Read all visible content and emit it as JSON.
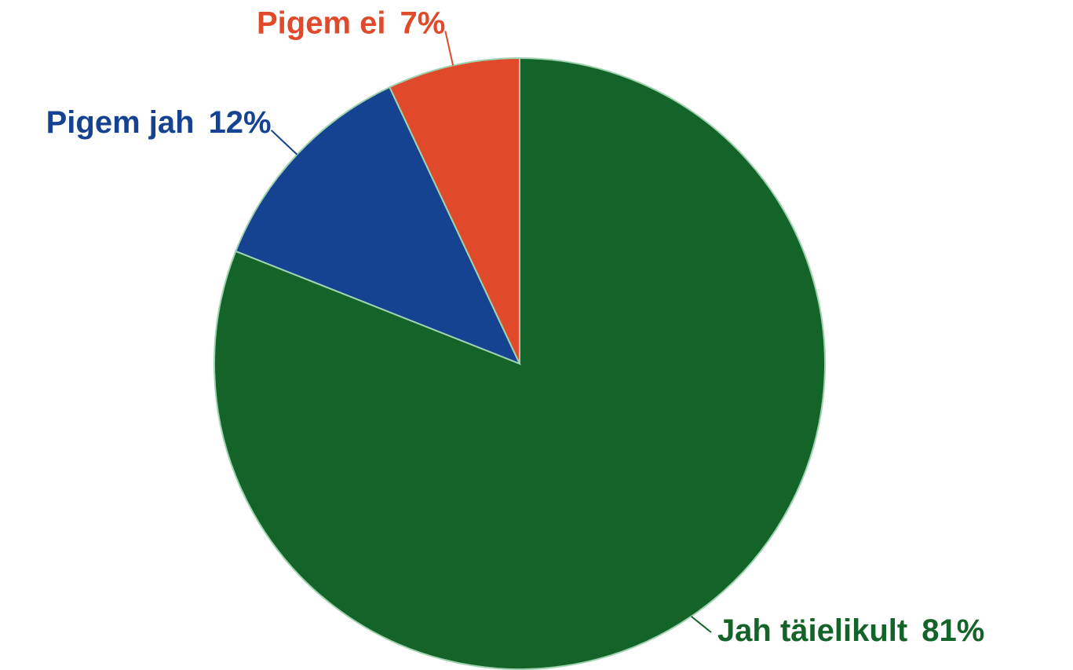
{
  "chart_data": {
    "type": "pie",
    "categories": [
      "Jah täielikult",
      "Pigem jah",
      "Pigem ei"
    ],
    "values": [
      81,
      12,
      7
    ],
    "value_labels": [
      "81%",
      "12%",
      "7%"
    ],
    "colors": [
      "#146429",
      "#164391",
      "#e04a2b"
    ]
  }
}
